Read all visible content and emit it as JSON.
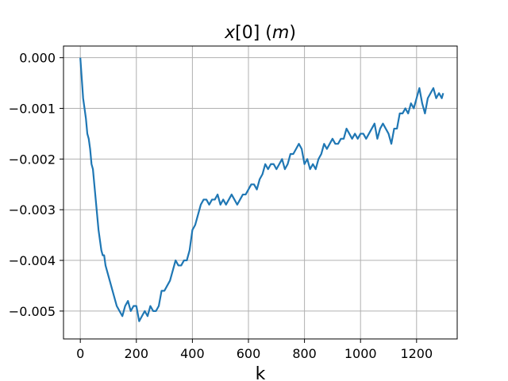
{
  "chart_data": {
    "type": "line",
    "title_parts": {
      "var": "x",
      "index": "[0]",
      "space": " (",
      "unit": "m",
      "close": ")"
    },
    "xlabel": "k",
    "ylabel": "",
    "xlim": [
      -60,
      1345
    ],
    "ylim": [
      -0.00555,
      0.00023
    ],
    "xticks": [
      0,
      200,
      400,
      600,
      800,
      1000,
      1200
    ],
    "xtick_labels": [
      "0",
      "200",
      "400",
      "600",
      "800",
      "1000",
      "1200"
    ],
    "yticks": [
      0.0,
      -0.001,
      -0.002,
      -0.003,
      -0.004,
      -0.005
    ],
    "ytick_labels": [
      "0.000",
      "−0.001",
      "−0.002",
      "−0.003",
      "−0.004",
      "−0.005"
    ],
    "grid": true,
    "legend": "none",
    "series": [
      {
        "color": "#1f77b4",
        "x": [
          0,
          5,
          10,
          15,
          20,
          25,
          30,
          35,
          40,
          45,
          50,
          55,
          60,
          65,
          70,
          75,
          80,
          85,
          90,
          95,
          100,
          110,
          120,
          130,
          140,
          150,
          160,
          170,
          180,
          190,
          200,
          210,
          220,
          230,
          240,
          250,
          260,
          270,
          280,
          290,
          300,
          310,
          320,
          330,
          340,
          350,
          360,
          370,
          380,
          390,
          400,
          410,
          420,
          430,
          440,
          450,
          460,
          470,
          480,
          490,
          500,
          510,
          520,
          530,
          540,
          550,
          560,
          570,
          580,
          590,
          600,
          610,
          620,
          630,
          640,
          650,
          660,
          670,
          680,
          690,
          700,
          710,
          720,
          730,
          740,
          750,
          760,
          770,
          780,
          790,
          800,
          810,
          820,
          830,
          840,
          850,
          860,
          870,
          880,
          890,
          900,
          910,
          920,
          930,
          940,
          950,
          960,
          970,
          980,
          990,
          1000,
          1010,
          1020,
          1030,
          1040,
          1050,
          1060,
          1070,
          1080,
          1090,
          1100,
          1110,
          1120,
          1130,
          1140,
          1150,
          1160,
          1170,
          1180,
          1190,
          1200,
          1210,
          1220,
          1230,
          1240,
          1250,
          1260,
          1270,
          1280,
          1290,
          1295
        ],
        "y": [
          0.0,
          -0.0004,
          -0.0008,
          -0.001,
          -0.0012,
          -0.0015,
          -0.0016,
          -0.0018,
          -0.0021,
          -0.0022,
          -0.0025,
          -0.0028,
          -0.0031,
          -0.0034,
          -0.0036,
          -0.0038,
          -0.0039,
          -0.0039,
          -0.0041,
          -0.0042,
          -0.0043,
          -0.0045,
          -0.0047,
          -0.0049,
          -0.005,
          -0.0051,
          -0.0049,
          -0.0048,
          -0.005,
          -0.0049,
          -0.0049,
          -0.0052,
          -0.0051,
          -0.005,
          -0.0051,
          -0.0049,
          -0.005,
          -0.005,
          -0.0049,
          -0.0046,
          -0.0046,
          -0.0045,
          -0.0044,
          -0.0042,
          -0.004,
          -0.0041,
          -0.0041,
          -0.004,
          -0.004,
          -0.0038,
          -0.0034,
          -0.0033,
          -0.0031,
          -0.0029,
          -0.0028,
          -0.0028,
          -0.0029,
          -0.0028,
          -0.0028,
          -0.0027,
          -0.0029,
          -0.0028,
          -0.0029,
          -0.0028,
          -0.0027,
          -0.0028,
          -0.0029,
          -0.0028,
          -0.0027,
          -0.0027,
          -0.0026,
          -0.0025,
          -0.0025,
          -0.0026,
          -0.0024,
          -0.0023,
          -0.0021,
          -0.0022,
          -0.0021,
          -0.0021,
          -0.0022,
          -0.0021,
          -0.002,
          -0.0022,
          -0.0021,
          -0.0019,
          -0.0019,
          -0.0018,
          -0.0017,
          -0.0018,
          -0.0021,
          -0.002,
          -0.0022,
          -0.0021,
          -0.0022,
          -0.002,
          -0.0019,
          -0.0017,
          -0.0018,
          -0.0017,
          -0.0016,
          -0.0017,
          -0.0017,
          -0.0016,
          -0.0016,
          -0.0014,
          -0.0015,
          -0.0016,
          -0.0015,
          -0.0016,
          -0.0015,
          -0.0015,
          -0.0016,
          -0.0015,
          -0.0014,
          -0.0013,
          -0.0016,
          -0.0014,
          -0.0013,
          -0.0014,
          -0.0015,
          -0.0017,
          -0.0014,
          -0.0014,
          -0.0011,
          -0.0011,
          -0.001,
          -0.0011,
          -0.0009,
          -0.001,
          -0.0008,
          -0.0006,
          -0.0009,
          -0.0011,
          -0.0008,
          -0.0007,
          -0.0006,
          -0.0008,
          -0.0007,
          -0.0008,
          -0.0007
        ]
      }
    ]
  }
}
